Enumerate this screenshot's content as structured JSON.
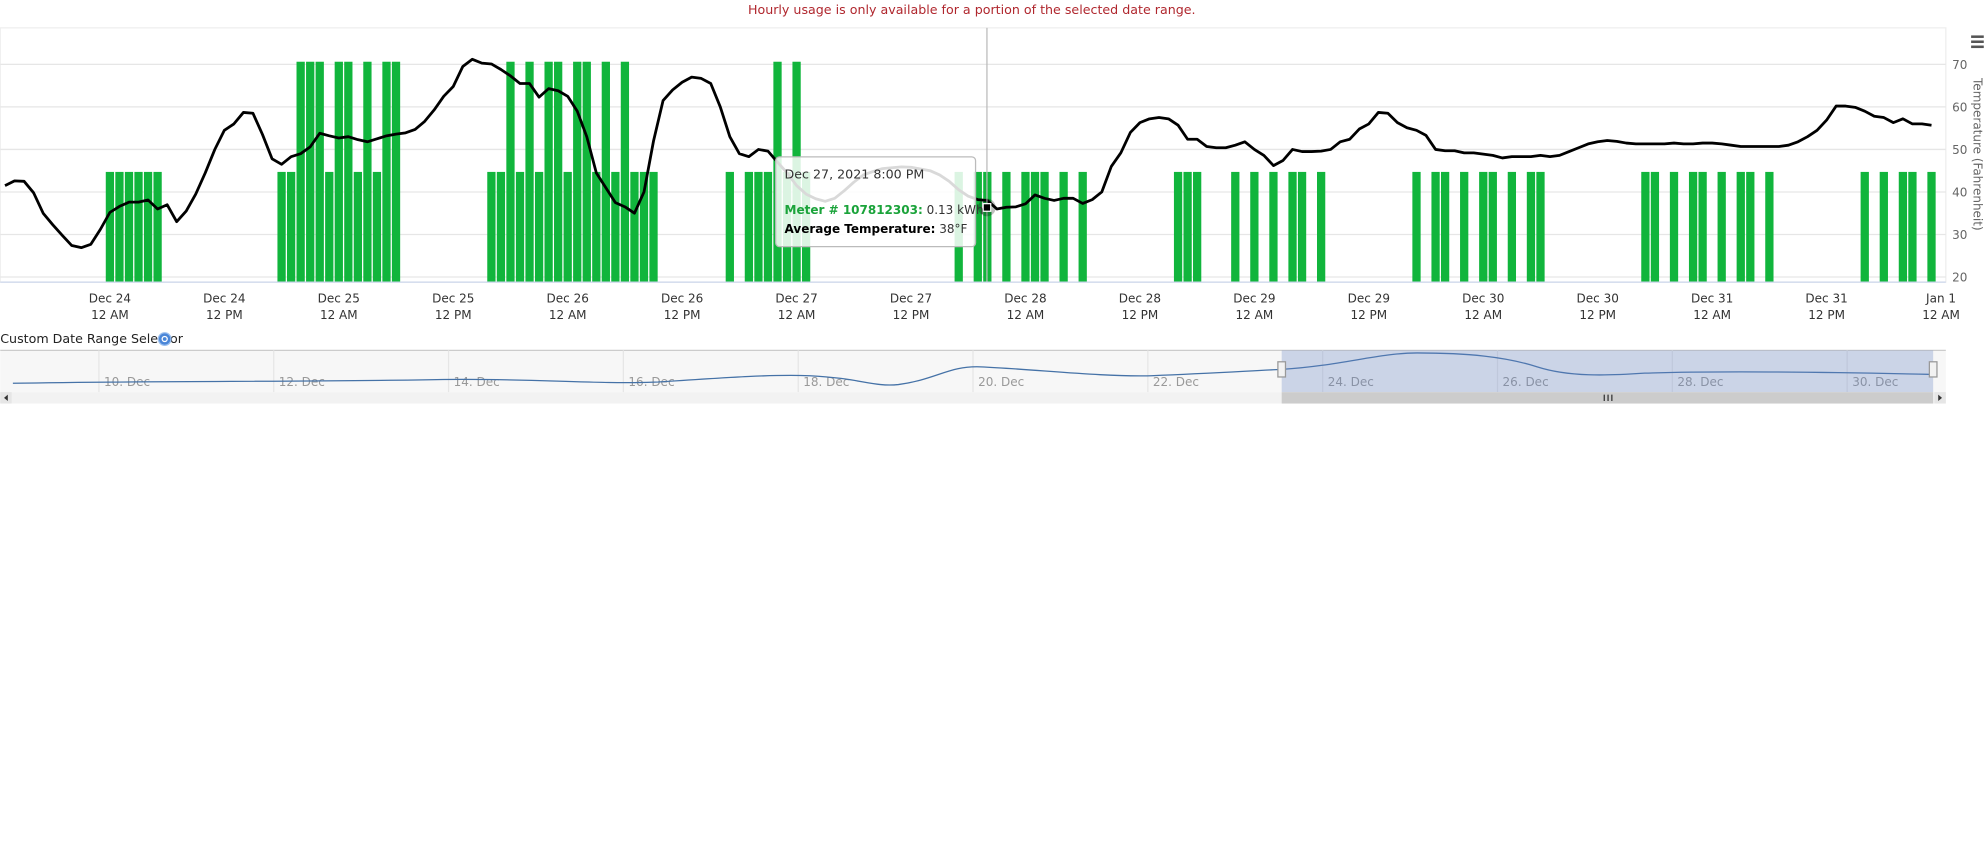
{
  "notice": "Hourly usage is only available for a portion of the selected date range.",
  "chart_data": {
    "type": "bar",
    "categories": [
      null,
      null,
      null,
      null,
      null,
      null,
      null,
      null,
      null,
      null,
      null,
      "Dec 24\n12 AM",
      null,
      null,
      null,
      null,
      null,
      null,
      null,
      null,
      null,
      null,
      null,
      "Dec 24\n12 PM",
      null,
      null,
      null,
      null,
      null,
      null,
      null,
      null,
      null,
      null,
      null,
      "Dec 25\n12 AM",
      null,
      null,
      null,
      null,
      null,
      null,
      null,
      null,
      null,
      null,
      null,
      "Dec 25\n12 PM",
      null,
      null,
      null,
      null,
      null,
      null,
      null,
      null,
      null,
      null,
      null,
      "Dec 26\n12 AM",
      null,
      null,
      null,
      null,
      null,
      null,
      null,
      null,
      null,
      null,
      null,
      "Dec 26\n12 PM",
      null,
      null,
      null,
      null,
      null,
      null,
      null,
      null,
      null,
      null,
      null,
      "Dec 27\n12 AM",
      null,
      null,
      null,
      null,
      null,
      null,
      null,
      null,
      null,
      null,
      null,
      "Dec 27\n12 PM",
      null,
      null,
      null,
      null,
      null,
      null,
      null,
      null,
      null,
      null,
      null,
      "Dec 28\n12 AM",
      null,
      null,
      null,
      null,
      null,
      null,
      null,
      null,
      null,
      null,
      null,
      "Dec 28\n12 PM",
      null,
      null,
      null,
      null,
      null,
      null,
      null,
      null,
      null,
      null,
      null,
      "Dec 29\n12 AM",
      null,
      null,
      null,
      null,
      null,
      null,
      null,
      null,
      null,
      null,
      null,
      "Dec 29\n12 PM",
      null,
      null,
      null,
      null,
      null,
      null,
      null,
      null,
      null,
      null,
      null,
      "Dec 30\n12 AM",
      null,
      null,
      null,
      null,
      null,
      null,
      null,
      null,
      null,
      null,
      null,
      "Dec 30\n12 PM",
      null,
      null,
      null,
      null,
      null,
      null,
      null,
      null,
      null,
      null,
      null,
      "Dec 31\n12 AM",
      null,
      null,
      null,
      null,
      null,
      null,
      null,
      null,
      null,
      null,
      null,
      "Dec 31\n12 PM",
      null,
      null,
      null,
      null,
      null,
      null,
      null,
      null,
      null,
      null,
      null,
      "Jan 1\n12 AM"
    ],
    "series": [
      {
        "type": "bar",
        "color": "#11b53c",
        "values": [
          0,
          0,
          0,
          0,
          0,
          0,
          0,
          0,
          0,
          0,
          0,
          0.13,
          0.13,
          0.13,
          0.13,
          0.13,
          0.13,
          0,
          0,
          0,
          0,
          0,
          0,
          0,
          0,
          0,
          0,
          0,
          0,
          0.13,
          0.13,
          0.26,
          0.26,
          0.26,
          0.13,
          0.26,
          0.26,
          0.13,
          0.26,
          0.13,
          0.26,
          0.26,
          0,
          0,
          0,
          0,
          0,
          0,
          0,
          0,
          0,
          0.13,
          0.13,
          0.26,
          0.13,
          0.26,
          0.13,
          0.26,
          0.26,
          0.13,
          0.26,
          0.26,
          0.13,
          0.26,
          0.13,
          0.26,
          0.13,
          0.13,
          0.13,
          0,
          0,
          0,
          0,
          0,
          0,
          0,
          0.13,
          0,
          0.13,
          0.13,
          0.13,
          0.26,
          0.13,
          0.26,
          0.13,
          0,
          0,
          0,
          0,
          0,
          0,
          0,
          0,
          0,
          0,
          0,
          0,
          0,
          0,
          0,
          0.13,
          0,
          0.13,
          0.13,
          0,
          0.13,
          0,
          0.13,
          0.13,
          0.13,
          0,
          0.13,
          0,
          0.13,
          0,
          0,
          0,
          0,
          0,
          0,
          0,
          0,
          0,
          0.13,
          0.13,
          0.13,
          0,
          0,
          0,
          0.13,
          0,
          0.13,
          0,
          0.13,
          0,
          0.13,
          0.13,
          0,
          0.13,
          0,
          0,
          0,
          0,
          0,
          0,
          0,
          0,
          0,
          0.13,
          0,
          0.13,
          0.13,
          0,
          0.13,
          0,
          0.13,
          0.13,
          0,
          0.13,
          0,
          0.13,
          0.13,
          0,
          0,
          0,
          0,
          0,
          0,
          0,
          0,
          0,
          0,
          0.13,
          0.13,
          0,
          0.13,
          0,
          0.13,
          0.13,
          0,
          0.13,
          0,
          0.13,
          0.13,
          0,
          0.13,
          0,
          0,
          0,
          0,
          0,
          0,
          0,
          0,
          0,
          0.13,
          0,
          0.13,
          0,
          0.13,
          0.13,
          0,
          0.13,
          0
        ]
      },
      {
        "type": "line",
        "axis": "y2",
        "color": "#000000",
        "values": [
          41.5,
          42.6,
          42.5,
          39.8,
          35,
          32.3,
          29.8,
          27.4,
          26.9,
          27.7,
          31.2,
          35.2,
          36.6,
          37.6,
          37.6,
          38.1,
          36,
          37,
          33,
          35.5,
          39.5,
          44.5,
          50,
          54.5,
          56,
          58.7,
          58.5,
          53.5,
          47.8,
          46.5,
          48.3,
          49,
          50.6,
          53.8,
          53.2,
          52.7,
          53,
          52.3,
          51.8,
          52.5,
          53.2,
          53.6,
          53.9,
          54.7,
          56.6,
          59.3,
          62.5,
          64.8,
          69.5,
          71.2,
          70.3,
          70.1,
          68.8,
          67.3,
          65.5,
          65.5,
          62.3,
          64.3,
          63.8,
          62.5,
          59,
          53,
          44.5,
          41,
          37.5,
          36.5,
          35,
          40,
          52,
          61.5,
          64,
          65.8,
          67,
          66.7,
          65.5,
          60,
          53,
          49,
          48.3,
          50,
          49.6,
          47,
          44.5,
          41.5,
          39.5,
          38.4,
          37.8,
          38.5,
          40.3,
          42.3,
          44,
          44.8,
          45.5,
          45.7,
          45.9,
          45.8,
          45.4,
          45,
          44,
          42.5,
          40.5,
          39,
          38.2,
          38,
          36,
          36.4,
          36.5,
          37.2,
          39.3,
          38.5,
          38,
          38.5,
          38.5,
          37.3,
          38.2,
          40,
          46,
          49.2,
          54,
          56.3,
          57.2,
          57.5,
          57.2,
          55.7,
          52.4,
          52.4,
          50.7,
          50.4,
          50.4,
          51,
          51.8,
          50,
          48.6,
          46.2,
          47.4,
          50,
          49.5,
          49.5,
          49.6,
          50,
          51.8,
          52.4,
          54.8,
          56,
          58.7,
          58.5,
          56.3,
          55.1,
          54.5,
          53.3,
          50,
          49.7,
          49.7,
          49.2,
          49.2,
          48.9,
          48.6,
          48,
          48.3,
          48.3,
          48.3,
          48.6,
          48.3,
          48.6,
          49.5,
          50.4,
          51.3,
          51.8,
          52.1,
          51.9,
          51.5,
          51.3,
          51.3,
          51.3,
          51.3,
          51.5,
          51.3,
          51.3,
          51.5,
          51.5,
          51.3,
          51,
          50.7,
          50.7,
          50.7,
          50.7,
          50.7,
          51,
          51.8,
          53,
          54.5,
          56.9,
          60.2,
          60.2,
          59.9,
          59,
          57.8,
          57.5,
          56.3,
          57.2,
          56,
          56,
          55.7,
          null
        ]
      }
    ],
    "ylim": [
      0,
      0.3
    ],
    "y2lim": [
      18.8,
      78.6
    ],
    "y2ticks": [
      20,
      30,
      40,
      50,
      60,
      70
    ],
    "y2_label": "Temperature (Fahrenheit)",
    "grid": true
  },
  "tooltip": {
    "date": "Dec 27, 2021 8:00 PM",
    "rows": [
      {
        "label": "Meter # 107812303:",
        "value": "0.13 kWh"
      },
      {
        "label": "Average Temperature:",
        "value": "38°F"
      }
    ]
  },
  "navigator": {
    "title": "Custom Date Range Selector",
    "labels": [
      "10. Dec",
      "12. Dec",
      "14. Dec",
      "16. Dec",
      "18. Dec",
      "20. Dec",
      "22. Dec",
      "24. Dec",
      "26. Dec",
      "28. Dec",
      "30. Dec"
    ]
  }
}
